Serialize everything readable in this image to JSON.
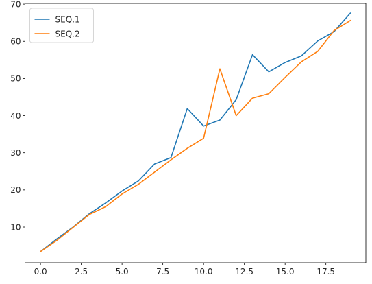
{
  "chart_data": {
    "type": "line",
    "title": "",
    "xlabel": "",
    "ylabel": "",
    "xlim": [
      -0.95,
      19.95
    ],
    "ylim": [
      0.4,
      70.2
    ],
    "grid": false,
    "legend_position": "top-left",
    "x_ticks": [
      0.0,
      2.5,
      5.0,
      7.5,
      10.0,
      12.5,
      15.0,
      17.5
    ],
    "x_tick_labels": [
      "0.0",
      "2.5",
      "5.0",
      "7.5",
      "10.0",
      "12.5",
      "15.0",
      "17.5"
    ],
    "y_ticks": [
      10,
      20,
      30,
      40,
      50,
      60,
      70
    ],
    "y_tick_labels": [
      "10",
      "20",
      "30",
      "40",
      "50",
      "60",
      "70"
    ],
    "x": [
      0,
      1,
      2,
      3,
      4,
      5,
      6,
      7,
      8,
      9,
      10,
      11,
      12,
      13,
      14,
      15,
      16,
      17,
      18,
      19
    ],
    "series": [
      {
        "name": "SEQ.1",
        "color": "#1f77b4",
        "values": [
          3.4,
          6.8,
          10.0,
          13.6,
          16.5,
          19.7,
          22.4,
          27.0,
          28.7,
          41.9,
          37.2,
          38.8,
          44.3,
          56.4,
          51.8,
          54.3,
          56.1,
          60.1,
          62.6,
          67.6
        ]
      },
      {
        "name": "SEQ.2",
        "color": "#ff7f0e",
        "values": [
          3.4,
          6.4,
          9.9,
          13.4,
          15.5,
          18.9,
          21.5,
          24.8,
          28.1,
          31.2,
          33.9,
          52.6,
          40.0,
          44.7,
          45.9,
          50.3,
          54.5,
          57.3,
          62.9,
          65.6
        ]
      }
    ]
  }
}
